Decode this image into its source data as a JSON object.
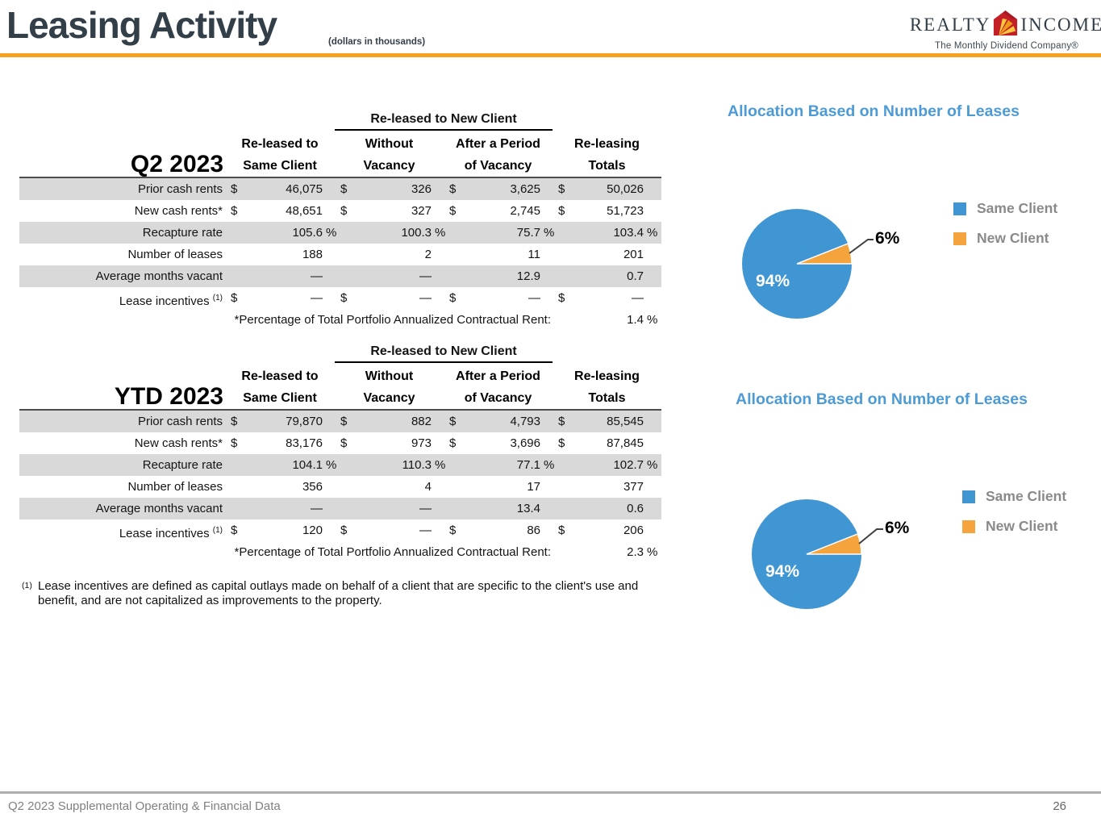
{
  "header": {
    "title": "Leasing Activity",
    "subtitle": "(dollars in thousands)",
    "logo": {
      "word1": "REALTY",
      "word2": "INCOME",
      "tagline": "The Monthly Dividend Company®"
    }
  },
  "colors": {
    "title_navy": "#333F48",
    "accent_orange": "#F6A21E",
    "chart_title_blue": "#4D9BD5",
    "stripe_gray": "#D9D9D9",
    "pie_blue": "#4096D2",
    "pie_orange": "#F5A33C"
  },
  "tables": [
    {
      "period": "Q2 2023",
      "span_header": "Re-leased to New Client",
      "cols": [
        {
          "l1": "Re-leased to",
          "l2": "Same Client"
        },
        {
          "l1": "Without",
          "l2": "Vacancy"
        },
        {
          "l1": "After a Period",
          "l2": "of Vacancy"
        },
        {
          "l1": "Re-leasing",
          "l2": "Totals"
        }
      ],
      "rows": [
        {
          "label": "Prior cash rents",
          "sup": "",
          "cells": [
            {
              "d": "$",
              "v": "46,075",
              "u": ""
            },
            {
              "d": "$",
              "v": "326",
              "u": ""
            },
            {
              "d": "$",
              "v": "3,625",
              "u": ""
            },
            {
              "d": "$",
              "v": "50,026",
              "u": ""
            }
          ]
        },
        {
          "label": "New cash rents*",
          "sup": "",
          "cells": [
            {
              "d": "$",
              "v": "48,651",
              "u": ""
            },
            {
              "d": "$",
              "v": "327",
              "u": ""
            },
            {
              "d": "$",
              "v": "2,745",
              "u": ""
            },
            {
              "d": "$",
              "v": "51,723",
              "u": ""
            }
          ]
        },
        {
          "label": "Recapture rate",
          "sup": "",
          "cells": [
            {
              "d": "",
              "v": "105.6",
              "u": "%"
            },
            {
              "d": "",
              "v": "100.3",
              "u": "%"
            },
            {
              "d": "",
              "v": "75.7",
              "u": "%"
            },
            {
              "d": "",
              "v": "103.4",
              "u": "%"
            }
          ]
        },
        {
          "label": "Number of leases",
          "sup": "",
          "cells": [
            {
              "d": "",
              "v": "188",
              "u": ""
            },
            {
              "d": "",
              "v": "2",
              "u": ""
            },
            {
              "d": "",
              "v": "11",
              "u": ""
            },
            {
              "d": "",
              "v": "201",
              "u": ""
            }
          ]
        },
        {
          "label": "Average months vacant",
          "sup": "",
          "cells": [
            {
              "d": "",
              "v": "—",
              "u": ""
            },
            {
              "d": "",
              "v": "—",
              "u": ""
            },
            {
              "d": "",
              "v": "12.9",
              "u": ""
            },
            {
              "d": "",
              "v": "0.7",
              "u": ""
            }
          ]
        },
        {
          "label": "Lease incentives",
          "sup": "(1)",
          "cells": [
            {
              "d": "$",
              "v": "—",
              "u": ""
            },
            {
              "d": "$",
              "v": "—",
              "u": ""
            },
            {
              "d": "$",
              "v": "—",
              "u": ""
            },
            {
              "d": "$",
              "v": "—",
              "u": ""
            }
          ]
        }
      ],
      "pct_label": "*Percentage of Total Portfolio Annualized Contractual Rent:",
      "pct_value": "1.4",
      "pct_unit": "%"
    },
    {
      "period": "YTD 2023",
      "span_header": "Re-leased to New Client",
      "cols": [
        {
          "l1": "Re-leased to",
          "l2": "Same Client"
        },
        {
          "l1": "Without",
          "l2": "Vacancy"
        },
        {
          "l1": "After a Period",
          "l2": "of Vacancy"
        },
        {
          "l1": "Re-leasing",
          "l2": "Totals"
        }
      ],
      "rows": [
        {
          "label": "Prior cash rents",
          "sup": "",
          "cells": [
            {
              "d": "$",
              "v": "79,870",
              "u": ""
            },
            {
              "d": "$",
              "v": "882",
              "u": ""
            },
            {
              "d": "$",
              "v": "4,793",
              "u": ""
            },
            {
              "d": "$",
              "v": "85,545",
              "u": ""
            }
          ]
        },
        {
          "label": "New cash rents*",
          "sup": "",
          "cells": [
            {
              "d": "$",
              "v": "83,176",
              "u": ""
            },
            {
              "d": "$",
              "v": "973",
              "u": ""
            },
            {
              "d": "$",
              "v": "3,696",
              "u": ""
            },
            {
              "d": "$",
              "v": "87,845",
              "u": ""
            }
          ]
        },
        {
          "label": "Recapture rate",
          "sup": "",
          "cells": [
            {
              "d": "",
              "v": "104.1",
              "u": "%"
            },
            {
              "d": "",
              "v": "110.3",
              "u": "%"
            },
            {
              "d": "",
              "v": "77.1",
              "u": "%"
            },
            {
              "d": "",
              "v": "102.7",
              "u": "%"
            }
          ]
        },
        {
          "label": "Number of leases",
          "sup": "",
          "cells": [
            {
              "d": "",
              "v": "356",
              "u": ""
            },
            {
              "d": "",
              "v": "4",
              "u": ""
            },
            {
              "d": "",
              "v": "17",
              "u": ""
            },
            {
              "d": "",
              "v": "377",
              "u": ""
            }
          ]
        },
        {
          "label": "Average months vacant",
          "sup": "",
          "cells": [
            {
              "d": "",
              "v": "—",
              "u": ""
            },
            {
              "d": "",
              "v": "—",
              "u": ""
            },
            {
              "d": "",
              "v": "13.4",
              "u": ""
            },
            {
              "d": "",
              "v": "0.6",
              "u": ""
            }
          ]
        },
        {
          "label": "Lease incentives",
          "sup": "(1)",
          "cells": [
            {
              "d": "$",
              "v": "120",
              "u": ""
            },
            {
              "d": "$",
              "v": "—",
              "u": ""
            },
            {
              "d": "$",
              "v": "86",
              "u": ""
            },
            {
              "d": "$",
              "v": "206",
              "u": ""
            }
          ]
        }
      ],
      "pct_label": "*Percentage of Total Portfolio Annualized Contractual Rent:",
      "pct_value": "2.3",
      "pct_unit": "%"
    }
  ],
  "footnote": {
    "sup": "(1)",
    "text": "Lease incentives are defined as capital outlays made on behalf of a client that are specific to the client's use and benefit, and are not capitalized as improvements to the property."
  },
  "chart_data": [
    {
      "type": "pie",
      "title": "Allocation Based on Number of Leases",
      "labels": [
        "Same Client",
        "New Client"
      ],
      "values": [
        94,
        6
      ],
      "value_labels": [
        "94%",
        "6%"
      ],
      "colors": [
        "#4096D2",
        "#F5A33C"
      ],
      "legend_position": "right"
    },
    {
      "type": "pie",
      "title": "Allocation Based on Number of Leases",
      "labels": [
        "Same Client",
        "New Client"
      ],
      "values": [
        94,
        6
      ],
      "value_labels": [
        "94%",
        "6%"
      ],
      "colors": [
        "#4096D2",
        "#F5A33C"
      ],
      "legend_position": "right"
    }
  ],
  "page_footer": {
    "left": "Q2 2023 Supplemental Operating & Financial Data",
    "page": "26"
  }
}
